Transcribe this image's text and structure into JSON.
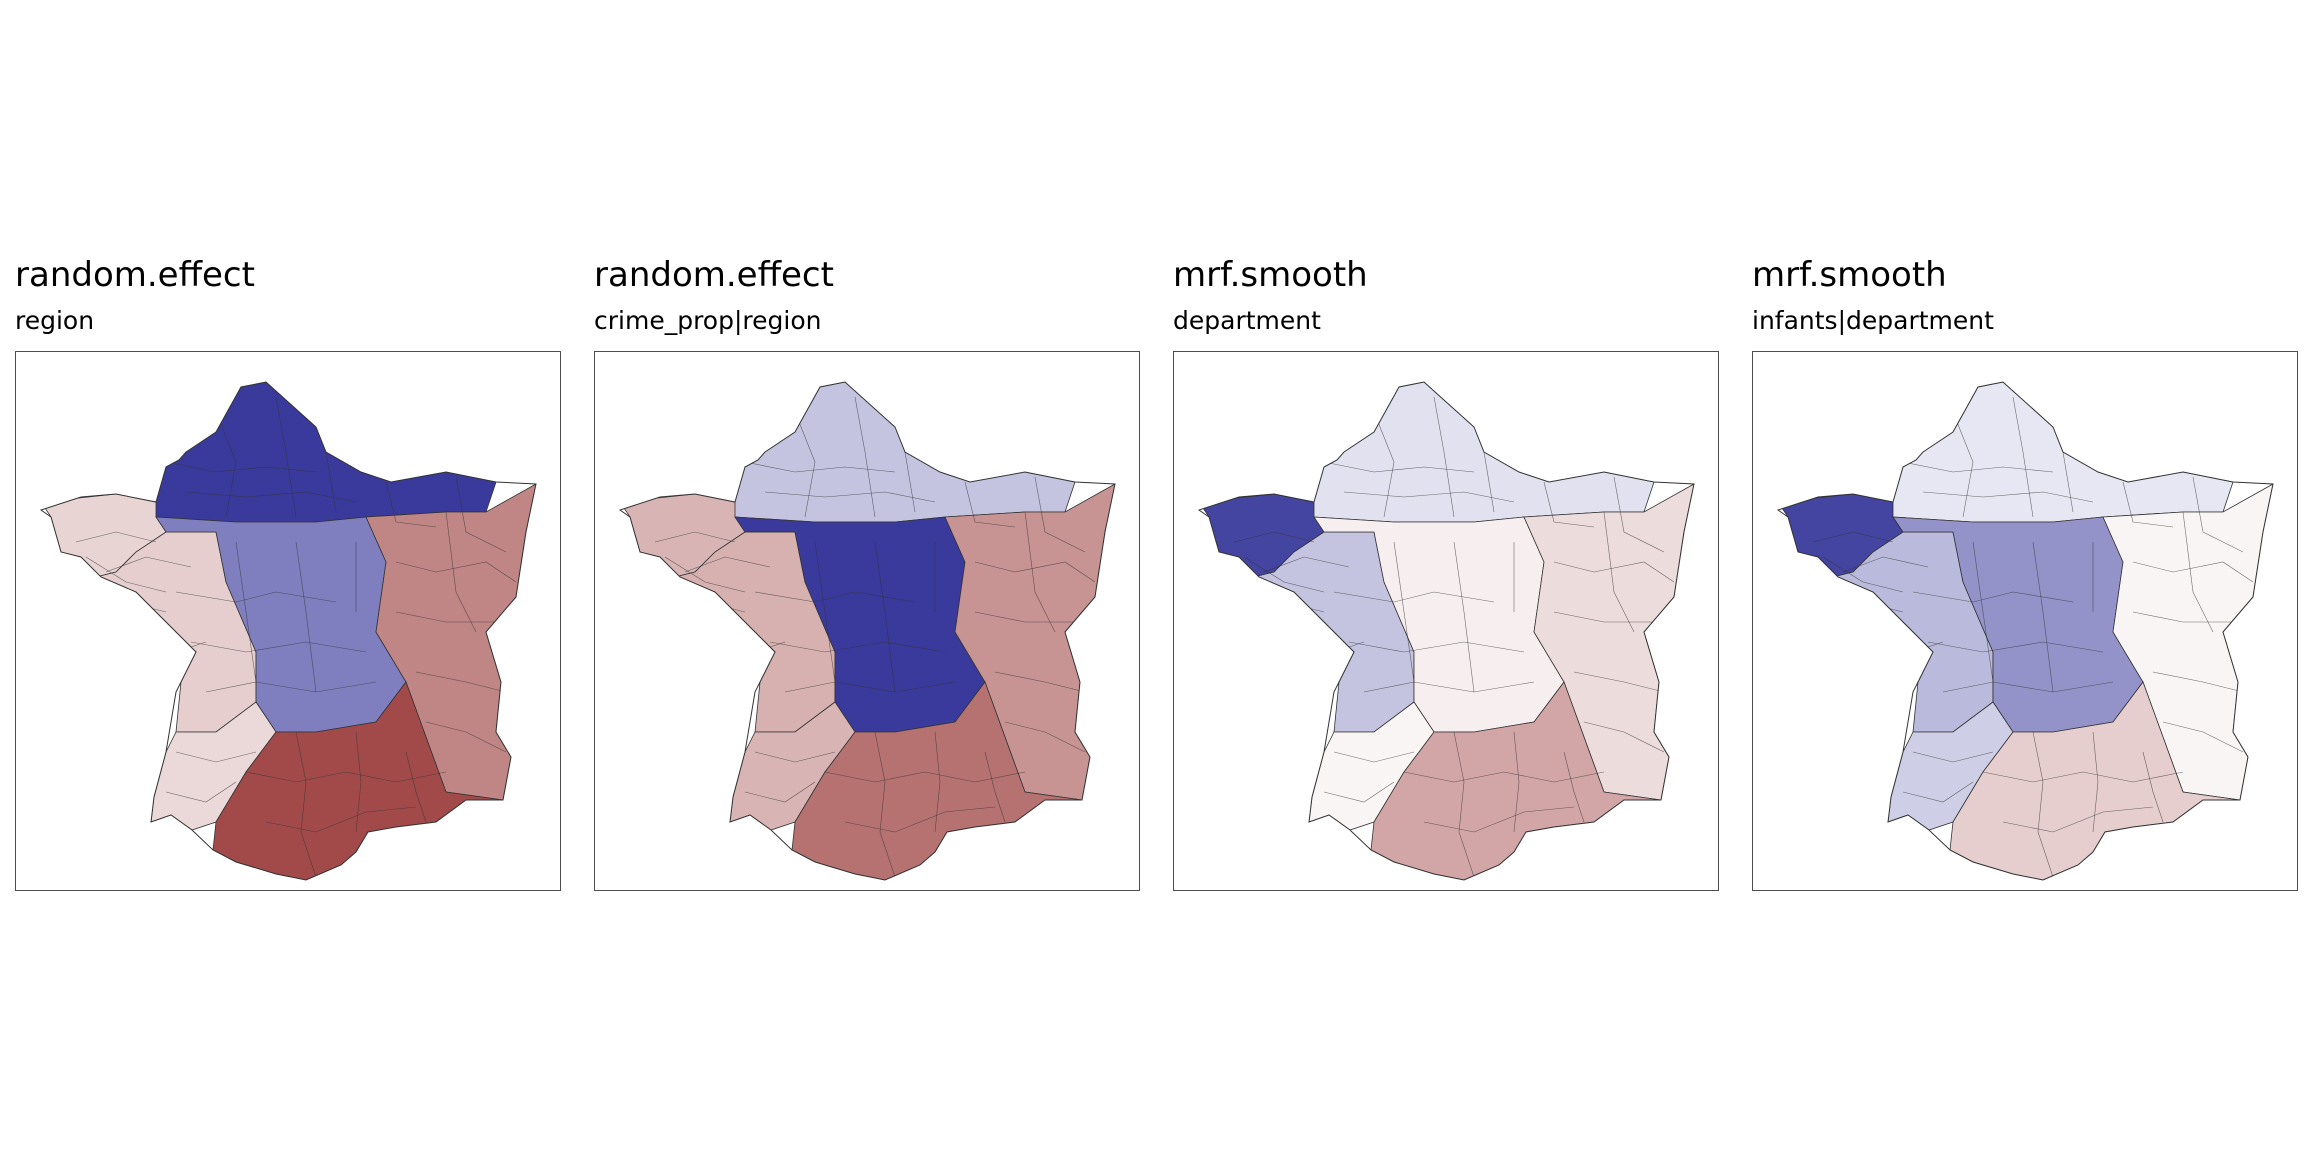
{
  "palette": {
    "low": "#3a3a9c",
    "mid": "#ffffff",
    "high": "#9a3a3a",
    "border": "#333333"
  },
  "panels": [
    {
      "title": "random.effect",
      "subtitle": "region",
      "zones": {
        "north": -1.0,
        "west": 0.25,
        "center": -0.65,
        "east": 0.62,
        "south": 0.92,
        "bretagne": 0.22,
        "southwest": 0.2
      }
    },
    {
      "title": "random.effect",
      "subtitle": "crime_prop|region",
      "zones": {
        "north": -0.3,
        "west": 0.4,
        "center": -1.0,
        "east": 0.55,
        "south": 0.72,
        "bretagne": 0.38,
        "southwest": 0.38
      }
    },
    {
      "title": "mrf.smooth",
      "subtitle": "department",
      "zones": {
        "north": -0.15,
        "west": -0.3,
        "center": 0.08,
        "east": 0.18,
        "south": 0.45,
        "bretagne": -0.95,
        "southwest": 0.05
      }
    },
    {
      "title": "mrf.smooth",
      "subtitle": "infants|department",
      "zones": {
        "north": -0.12,
        "west": -0.35,
        "center": -0.55,
        "east": 0.05,
        "south": 0.25,
        "bretagne": -0.95,
        "southwest": -0.25
      }
    }
  ]
}
